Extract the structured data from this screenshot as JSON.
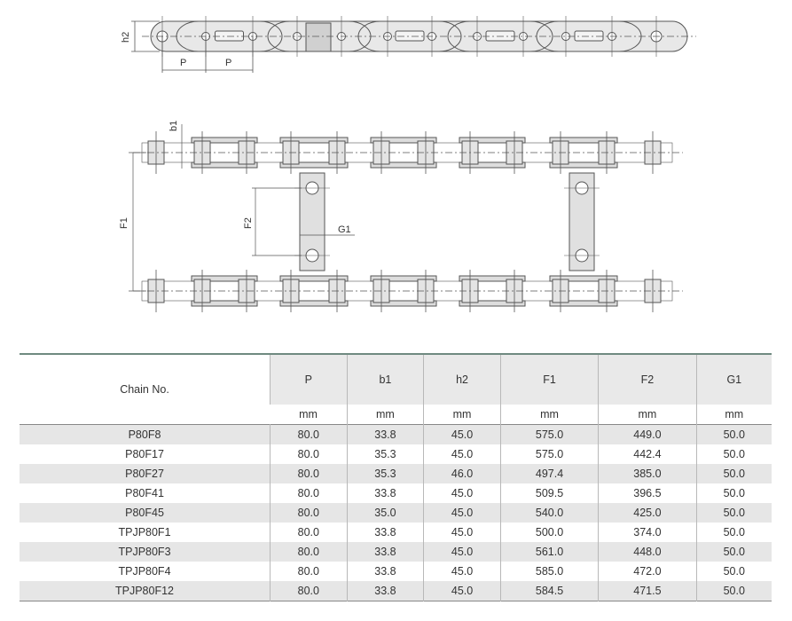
{
  "diagram": {
    "labels": {
      "h2": "h2",
      "P1": "P",
      "P2": "P",
      "b1": "b1",
      "F1": "F1",
      "F2": "F2",
      "G1": "G1"
    }
  },
  "table": {
    "columns": [
      {
        "label": "Chain No.",
        "unit": ""
      },
      {
        "label": "P",
        "unit": "mm"
      },
      {
        "label": "b1",
        "unit": "mm"
      },
      {
        "label": "h2",
        "unit": "mm"
      },
      {
        "label": "F1",
        "unit": "mm"
      },
      {
        "label": "F2",
        "unit": "mm"
      },
      {
        "label": "G1",
        "unit": "mm"
      }
    ],
    "rows": [
      [
        "P80F8",
        "80.0",
        "33.8",
        "45.0",
        "575.0",
        "449.0",
        "50.0"
      ],
      [
        "P80F17",
        "80.0",
        "35.3",
        "45.0",
        "575.0",
        "442.4",
        "50.0"
      ],
      [
        "P80F27",
        "80.0",
        "35.3",
        "46.0",
        "497.4",
        "385.0",
        "50.0"
      ],
      [
        "P80F41",
        "80.0",
        "33.8",
        "45.0",
        "509.5",
        "396.5",
        "50.0"
      ],
      [
        "P80F45",
        "80.0",
        "35.0",
        "45.0",
        "540.0",
        "425.0",
        "50.0"
      ],
      [
        "TPJP80F1",
        "80.0",
        "33.8",
        "45.0",
        "500.0",
        "374.0",
        "50.0"
      ],
      [
        "TPJP80F3",
        "80.0",
        "33.8",
        "45.0",
        "561.0",
        "448.0",
        "50.0"
      ],
      [
        "TPJP80F4",
        "80.0",
        "33.8",
        "45.0",
        "585.0",
        "472.0",
        "50.0"
      ],
      [
        "TPJP80F12",
        "80.0",
        "33.8",
        "45.0",
        "584.5",
        "471.5",
        "50.0"
      ]
    ]
  }
}
